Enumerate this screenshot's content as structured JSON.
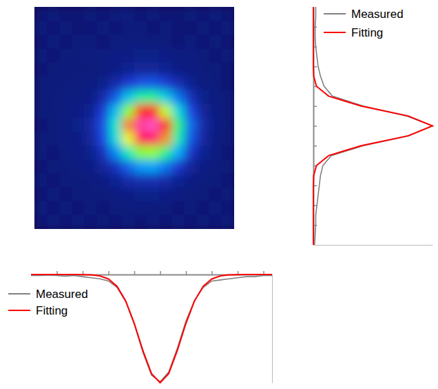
{
  "chart_data": [
    {
      "type": "heatmap",
      "zlim": [
        0,
        100
      ],
      "tick_labels": false,
      "cells": [
        [
          7,
          8,
          6,
          7,
          8,
          7,
          8,
          9,
          7,
          8,
          7,
          6,
          8,
          7,
          8,
          7
        ],
        [
          8,
          7,
          8,
          6,
          7,
          8,
          7,
          8,
          8,
          7,
          8,
          7,
          6,
          8,
          7,
          8
        ],
        [
          7,
          8,
          7,
          8,
          8,
          7,
          9,
          8,
          9,
          8,
          8,
          7,
          8,
          7,
          8,
          6
        ],
        [
          8,
          7,
          8,
          8,
          9,
          9,
          10,
          10,
          11,
          11,
          10,
          9,
          9,
          8,
          7,
          8
        ],
        [
          7,
          8,
          8,
          8,
          8,
          9,
          10,
          12,
          13,
          13,
          12,
          10,
          9,
          8,
          8,
          7
        ],
        [
          8,
          8,
          8,
          9,
          9,
          11,
          15,
          20,
          24,
          25,
          21,
          16,
          12,
          9,
          8,
          7
        ],
        [
          8,
          8,
          9,
          9,
          10,
          15,
          25,
          38,
          48,
          49,
          40,
          28,
          17,
          11,
          9,
          8
        ],
        [
          8,
          8,
          9,
          10,
          12,
          21,
          37,
          60,
          77,
          79,
          64,
          42,
          23,
          13,
          9,
          8
        ],
        [
          7,
          8,
          9,
          11,
          14,
          24,
          45,
          73,
          95,
          98,
          79,
          51,
          27,
          15,
          10,
          8
        ],
        [
          8,
          8,
          9,
          10,
          13,
          23,
          42,
          67,
          87,
          89,
          72,
          47,
          25,
          14,
          9,
          8
        ],
        [
          8,
          7,
          9,
          10,
          11,
          18,
          30,
          46,
          60,
          61,
          50,
          34,
          19,
          12,
          9,
          7
        ],
        [
          7,
          8,
          8,
          9,
          10,
          13,
          18,
          26,
          32,
          33,
          28,
          20,
          13,
          10,
          8,
          8
        ],
        [
          8,
          7,
          8,
          8,
          8,
          10,
          12,
          15,
          16,
          16,
          15,
          12,
          10,
          8,
          8,
          7
        ],
        [
          7,
          8,
          7,
          8,
          8,
          8,
          9,
          10,
          11,
          11,
          10,
          9,
          8,
          8,
          7,
          8
        ],
        [
          8,
          7,
          8,
          7,
          8,
          7,
          8,
          8,
          9,
          8,
          8,
          7,
          8,
          7,
          8,
          7
        ],
        [
          7,
          8,
          7,
          8,
          7,
          8,
          7,
          8,
          7,
          8,
          7,
          8,
          7,
          8,
          7,
          8
        ]
      ]
    },
    {
      "type": "line",
      "orientation": "horizontal",
      "legend": "top",
      "tick_labels": false,
      "x": [
        0,
        0.5,
        1,
        1.5,
        2,
        2.5,
        3,
        3.5,
        4,
        4.5,
        5,
        5.5,
        6,
        6.5,
        7,
        7.5,
        8,
        8.5,
        9,
        9.5,
        10,
        10.5,
        11,
        11.5,
        12
      ],
      "xlim": [
        0,
        12
      ],
      "xticks": [
        1,
        2,
        3,
        4,
        5,
        6,
        7,
        8,
        9,
        10,
        11
      ],
      "ylim": [
        0,
        1
      ],
      "yticks": [],
      "series": [
        {
          "name": "Measured",
          "color": "#808080",
          "values": [
            0.02,
            0.02,
            0.015,
            0.015,
            0.02,
            0.03,
            0.04,
            0.06,
            0.09,
            0.16,
            0.42,
            0.78,
            1.0,
            0.8,
            0.42,
            0.15,
            0.08,
            0.06,
            0.05,
            0.04,
            0.03,
            0.02,
            0.02,
            0.015,
            0.01
          ]
        },
        {
          "name": "Fitting",
          "color": "#ff0000",
          "values": [
            0,
            0,
            0,
            0,
            0,
            0,
            0,
            0.003,
            0.026,
            0.128,
            0.401,
            0.796,
            1,
            0.796,
            0.401,
            0.128,
            0.026,
            0.003,
            0,
            0,
            0,
            0,
            0,
            0,
            0
          ]
        }
      ]
    },
    {
      "type": "line",
      "legend": "top-left",
      "tick_labels": false,
      "x": [
        0,
        1,
        2,
        3,
        4,
        5,
        6,
        7,
        8,
        9,
        10,
        11,
        12,
        13,
        14,
        15,
        16,
        17,
        18,
        19,
        20,
        21,
        22,
        23,
        24,
        25,
        26,
        27,
        28
      ],
      "xlim": [
        0,
        28
      ],
      "xticks": [
        3,
        6,
        9,
        12,
        15,
        18,
        21,
        24,
        27
      ],
      "ylim": [
        0,
        1
      ],
      "yticks": [],
      "series": [
        {
          "name": "Measured",
          "color": "#808080",
          "values": [
            0.01,
            0.01,
            0.005,
            0.01,
            0.015,
            0.01,
            0.02,
            0.03,
            0.04,
            0.06,
            0.12,
            0.25,
            0.46,
            0.72,
            0.93,
            0.99,
            0.9,
            0.68,
            0.43,
            0.24,
            0.12,
            0.06,
            0.05,
            0.04,
            0.03,
            0.02,
            0.02,
            0.01,
            0.01
          ]
        },
        {
          "name": "Fitting",
          "color": "#ff0000",
          "values": [
            0,
            0,
            0,
            0,
            0,
            0,
            0.001,
            0.003,
            0.013,
            0.041,
            0.11,
            0.243,
            0.451,
            0.702,
            0.915,
            1,
            0.915,
            0.702,
            0.451,
            0.243,
            0.11,
            0.041,
            0.013,
            0.003,
            0.001,
            0,
            0,
            0,
            0
          ]
        }
      ]
    }
  ]
}
